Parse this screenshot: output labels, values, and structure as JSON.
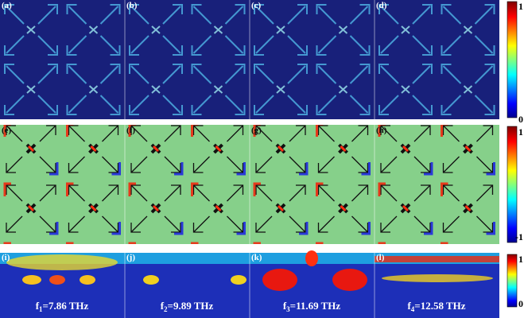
{
  "panel_labels": [
    "(a)",
    "(b)",
    "(c)",
    "(d)",
    "(e)",
    "(f)",
    "(g)",
    "(h)",
    "(i)",
    "(j)",
    "(k)",
    "(l)"
  ],
  "colorbars": [
    {
      "max": "1",
      "min": "0"
    },
    {
      "max": "1",
      "min": "-1"
    },
    {
      "max": "1",
      "min": "0"
    }
  ],
  "frequencies": [
    {
      "symbol": "f",
      "index": "1",
      "text": "=7.86 THz"
    },
    {
      "symbol": "f",
      "index": "2",
      "text": "=9.89 THz"
    },
    {
      "symbol": "f",
      "index": "3",
      "text": "=11.69 THz"
    },
    {
      "symbol": "f",
      "index": "4",
      "text": "=12.58 THz"
    }
  ]
}
